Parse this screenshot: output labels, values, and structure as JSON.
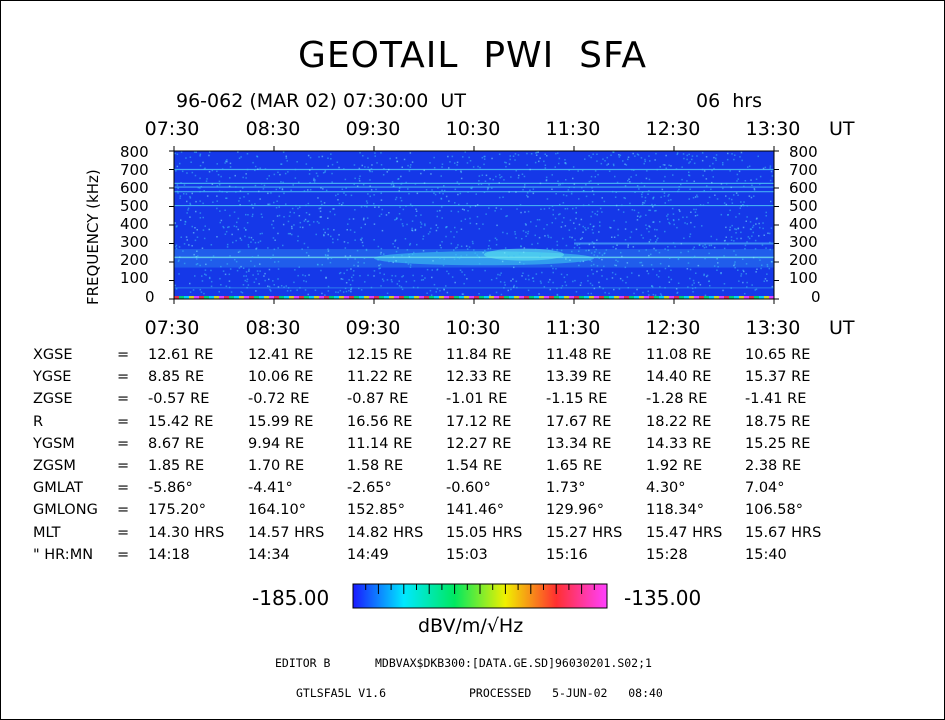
{
  "page": {
    "title": "GEOTAIL  PWI  SFA",
    "subtitle_date": "96-062 (MAR 02) 07:30:00  UT",
    "subtitle_hours": "06  hrs"
  },
  "chart_data": {
    "type": "heatmap",
    "title": "GEOTAIL  PWI  SFA",
    "ylabel": "FREQUENCY (kHz)",
    "x_unit": "UT",
    "x_ticks": [
      "07:30",
      "08:30",
      "09:30",
      "10:30",
      "11:30",
      "12:30",
      "13:30"
    ],
    "x_range": [
      "07:30",
      "13:30"
    ],
    "y_ticks": [
      800,
      700,
      600,
      500,
      400,
      300,
      200,
      100,
      0
    ],
    "y_range": [
      0,
      800
    ],
    "colorbar": {
      "min": "-185.00",
      "max": "-135.00",
      "unit": "dBV/m/√Hz"
    },
    "features": {
      "background_color": "#1538e8",
      "persistent_lines_khz": [
        605,
        625,
        580,
        700,
        505
      ],
      "enhanced_band_khz": [
        170,
        270
      ],
      "enhanced_band_peak_time": "11:00",
      "narrowband_khz": 225,
      "afternoon_band_khz": 300,
      "low_freq_line_khz": 60
    }
  },
  "orbit_table": {
    "rows": [
      {
        "label": "XGSE",
        "cells": [
          "12.61 RE",
          "12.41 RE",
          "12.15 RE",
          "11.84 RE",
          "11.48 RE",
          "11.08 RE",
          "10.65 RE"
        ]
      },
      {
        "label": "YGSE",
        "cells": [
          "8.85 RE",
          "10.06 RE",
          "11.22 RE",
          "12.33 RE",
          "13.39 RE",
          "14.40 RE",
          "15.37 RE"
        ]
      },
      {
        "label": "ZGSE",
        "cells": [
          "-0.57 RE",
          "-0.72 RE",
          "-0.87 RE",
          "-1.01 RE",
          "-1.15 RE",
          "-1.28 RE",
          "-1.41 RE"
        ]
      },
      {
        "label": "R",
        "cells": [
          "15.42 RE",
          "15.99 RE",
          "16.56 RE",
          "17.12 RE",
          "17.67 RE",
          "18.22 RE",
          "18.75 RE"
        ]
      },
      {
        "label": "YGSM",
        "cells": [
          "8.67 RE",
          "9.94 RE",
          "11.14 RE",
          "12.27 RE",
          "13.34 RE",
          "14.33 RE",
          "15.25 RE"
        ]
      },
      {
        "label": "ZGSM",
        "cells": [
          "1.85 RE",
          "1.70 RE",
          "1.58 RE",
          "1.54 RE",
          "1.65 RE",
          "1.92 RE",
          "2.38 RE"
        ]
      },
      {
        "label": "GMLAT",
        "cells": [
          "-5.86°",
          "-4.41°",
          "-2.65°",
          "-0.60°",
          "1.73°",
          "4.30°",
          "7.04°"
        ]
      },
      {
        "label": "GMLONG",
        "cells": [
          "175.20°",
          "164.10°",
          "152.85°",
          "141.46°",
          "129.96°",
          "118.34°",
          "106.58°"
        ]
      },
      {
        "label": "MLT",
        "cells": [
          "14.30 HRS",
          "14.57 HRS",
          "14.82 HRS",
          "15.05 HRS",
          "15.27 HRS",
          "15.47 HRS",
          "15.67 HRS"
        ]
      },
      {
        "label": "\" HR:MN",
        "cells": [
          "14:18",
          "14:34",
          "14:49",
          "15:03",
          "15:16",
          "15:28",
          "15:40"
        ]
      }
    ],
    "equals": "="
  },
  "footer": {
    "editor": "EDITOR B",
    "path": "MDBVAX$DKB300:[DATA.GE.SD]96030201.S02;1",
    "version": "GTLSFA5L V1.6",
    "processed": "PROCESSED   5-JUN-02   08:40"
  }
}
